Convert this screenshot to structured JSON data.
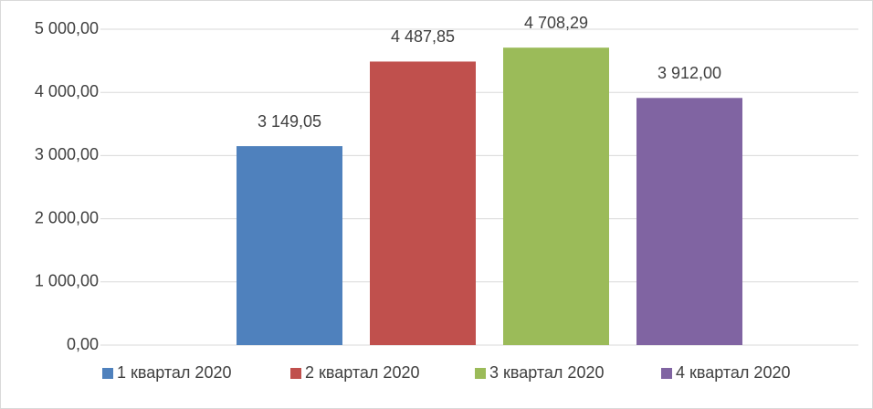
{
  "chart_data": {
    "type": "bar",
    "series": [
      {
        "name": "1 квартал 2020",
        "color": "#4f81bd",
        "values": [
          3149.05
        ],
        "value_labels": [
          "3 149,05"
        ]
      },
      {
        "name": "2 квартал 2020",
        "color": "#c0504d",
        "values": [
          4487.85
        ],
        "value_labels": [
          "4 487,85"
        ]
      },
      {
        "name": "3 квартал 2020",
        "color": "#9bbb59",
        "values": [
          4708.29
        ],
        "value_labels": [
          "4 708,29"
        ]
      },
      {
        "name": "4 квартал 2020",
        "color": "#8064a2",
        "values": [
          3912.0
        ],
        "value_labels": [
          "3 912,00"
        ]
      }
    ],
    "ylim": [
      0,
      5000
    ],
    "yticks": [
      {
        "value": 0,
        "label": "0,00"
      },
      {
        "value": 1000,
        "label": "1 000,00"
      },
      {
        "value": 2000,
        "label": "2 000,00"
      },
      {
        "value": 3000,
        "label": "3 000,00"
      },
      {
        "value": 4000,
        "label": "4 000,00"
      },
      {
        "value": 5000,
        "label": "5 000,00"
      }
    ],
    "grid": true,
    "legend": "bottom"
  }
}
